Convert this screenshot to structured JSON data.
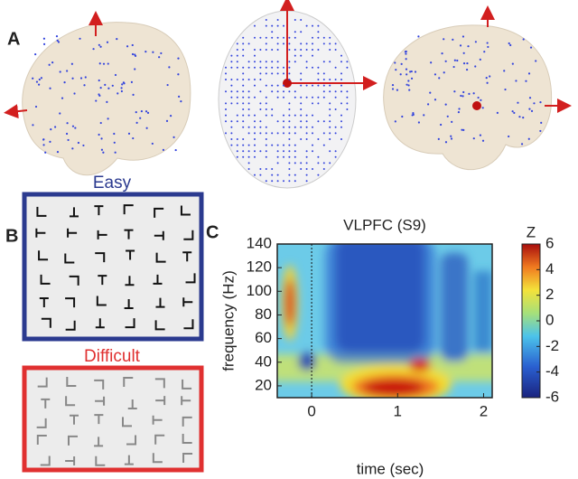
{
  "panels": {
    "a": "A",
    "b": "B",
    "c": "C"
  },
  "easy": "Easy",
  "difficult": "Difficult",
  "chart_data": {
    "type": "heatmap",
    "title": "VLPFC (S9)",
    "x_label": "time (sec)",
    "y_label": "frequency (Hz)",
    "xlim": [
      -0.4,
      2.1
    ],
    "xticks": [
      0,
      1,
      2
    ],
    "ylim": [
      10,
      140
    ],
    "yticks": [
      20,
      40,
      60,
      80,
      100,
      120,
      140
    ],
    "colorbar": {
      "label": "Z",
      "lim": [
        -6,
        6
      ],
      "ticks": [
        6,
        4,
        2,
        0,
        -2,
        -4,
        -6
      ]
    }
  }
}
